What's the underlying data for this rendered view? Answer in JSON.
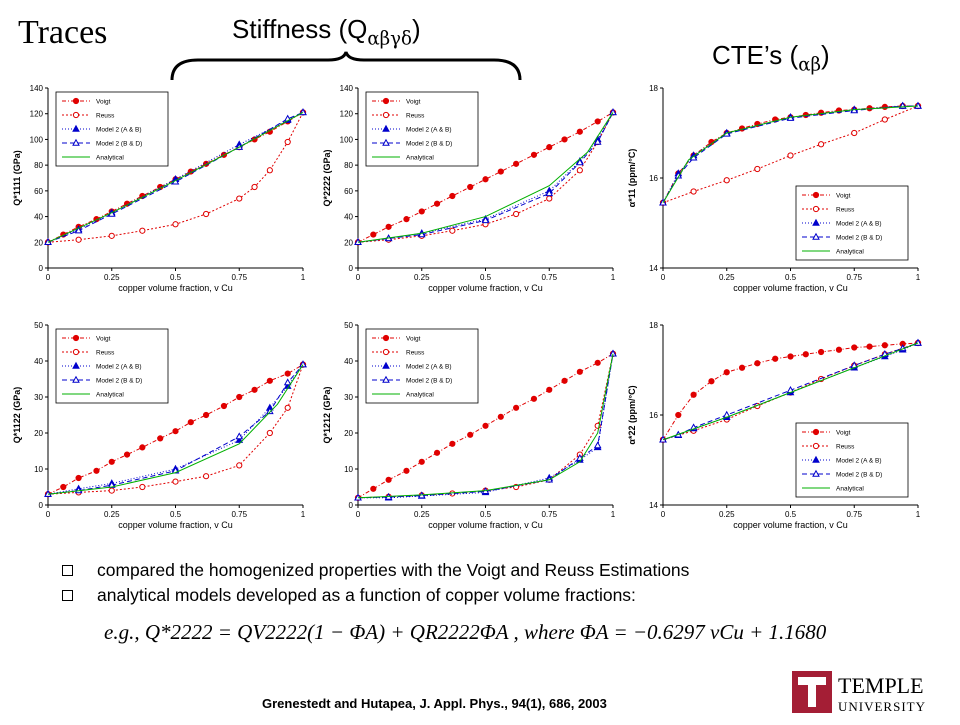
{
  "slide": {
    "title": "Traces",
    "stiffness_heading": "Stiffness (Q",
    "stiffness_greek": "αβγδ",
    "cte_heading": "CTE’s (",
    "cte_greek": "αβ",
    "bullets": [
      "compared the homogenized properties with the Voigt and Reuss Estimations",
      "analytical models developed as a function of copper volume fractions:"
    ],
    "equation_text": "e.g., Q*2222 = QV2222(1 − ΦA) + QR2222ΦA , where ΦA = −0.6297 vCu + 1.1680",
    "citation": "Grenestedt and Hutapea, J. Appl. Phys., 94(1), 686, 2003",
    "logo": {
      "top_word": "TEMPLE",
      "bottom_word": "UNIVERSITY",
      "color": "#a41e35"
    }
  },
  "chart_data": [
    {
      "type": "line",
      "xlabel": "copper volume fraction, v Cu",
      "ylabel": "Q*1111 (GPa)",
      "xlim": [
        0,
        1
      ],
      "ylim": [
        0,
        140
      ],
      "xticks": [
        "0",
        "0.25",
        "0.5",
        "0.75",
        "1"
      ],
      "yticks": [
        "0",
        "20",
        "40",
        "60",
        "80",
        "100",
        "120",
        "140"
      ],
      "legend": [
        "Voigt",
        "Reuss",
        "Model 2 (A & B)",
        "Model 2 (B & D)",
        "Analytical"
      ],
      "legend_position": "top-left",
      "series": [
        {
          "name": "Voigt",
          "x": [
            0,
            0.06,
            0.12,
            0.19,
            0.25,
            0.31,
            0.37,
            0.44,
            0.5,
            0.56,
            0.62,
            0.69,
            0.75,
            0.81,
            0.87,
            0.94,
            1.0
          ],
          "y": [
            20,
            26,
            32,
            38,
            44,
            50,
            56,
            63,
            69,
            75,
            81,
            88,
            94,
            100,
            106,
            114,
            121
          ]
        },
        {
          "name": "Reuss",
          "x": [
            0,
            0.12,
            0.25,
            0.37,
            0.5,
            0.62,
            0.75,
            0.81,
            0.87,
            0.94,
            1.0
          ],
          "y": [
            20,
            22,
            25,
            29,
            34,
            42,
            54,
            63,
            76,
            98,
            121
          ]
        },
        {
          "name": "Model 2 (A & B)",
          "x": [
            0,
            0.12,
            0.25,
            0.5,
            0.75,
            0.94,
            1.0
          ],
          "y": [
            20,
            30,
            43,
            69,
            96,
            115,
            121
          ]
        },
        {
          "name": "Model 2 (B & D)",
          "x": [
            0,
            0.12,
            0.25,
            0.5,
            0.75,
            0.94,
            1.0
          ],
          "y": [
            20,
            29,
            42,
            67,
            94,
            116,
            121
          ]
        },
        {
          "name": "Analytical",
          "x": [
            0,
            0.25,
            0.5,
            0.75,
            1.0
          ],
          "y": [
            20,
            43,
            68,
            94,
            121
          ]
        }
      ]
    },
    {
      "type": "line",
      "xlabel": "copper volume fraction, v Cu",
      "ylabel": "Q*2222 (GPa)",
      "xlim": [
        0,
        1
      ],
      "ylim": [
        0,
        140
      ],
      "xticks": [
        "0",
        "0.25",
        "0.5",
        "0.75",
        "1"
      ],
      "yticks": [
        "0",
        "20",
        "40",
        "60",
        "80",
        "100",
        "120",
        "140"
      ],
      "legend": [
        "Voigt",
        "Reuss",
        "Model 2 (A & B)",
        "Model 2 (B & D)",
        "Analytical"
      ],
      "legend_position": "top-left",
      "series": [
        {
          "name": "Voigt",
          "x": [
            0,
            0.06,
            0.12,
            0.19,
            0.25,
            0.31,
            0.37,
            0.44,
            0.5,
            0.56,
            0.62,
            0.69,
            0.75,
            0.81,
            0.87,
            0.94,
            1.0
          ],
          "y": [
            20,
            26,
            32,
            38,
            44,
            50,
            56,
            63,
            69,
            75,
            81,
            88,
            94,
            100,
            106,
            114,
            121
          ]
        },
        {
          "name": "Reuss",
          "x": [
            0,
            0.12,
            0.25,
            0.37,
            0.5,
            0.62,
            0.75,
            0.87,
            0.94,
            1.0
          ],
          "y": [
            20,
            22,
            25,
            29,
            34,
            42,
            54,
            76,
            98,
            121
          ]
        },
        {
          "name": "Model 2 (A & B)",
          "x": [
            0,
            0.12,
            0.25,
            0.5,
            0.75,
            0.87,
            0.94,
            1.0
          ],
          "y": [
            20,
            23,
            27,
            38,
            60,
            83,
            100,
            121
          ]
        },
        {
          "name": "Model 2 (B & D)",
          "x": [
            0,
            0.12,
            0.25,
            0.5,
            0.75,
            0.87,
            0.94,
            1.0
          ],
          "y": [
            20,
            23,
            26,
            37,
            58,
            82,
            98,
            121
          ]
        },
        {
          "name": "Analytical",
          "x": [
            0,
            0.25,
            0.5,
            0.75,
            0.9,
            1.0
          ],
          "y": [
            20,
            27,
            40,
            64,
            90,
            121
          ]
        }
      ]
    },
    {
      "type": "line",
      "xlabel": "copper volume fraction, v Cu",
      "ylabel": "α*11 (ppm/°C)",
      "xlim": [
        0,
        1
      ],
      "ylim": [
        14,
        18
      ],
      "xticks": [
        "0",
        "0.25",
        "0.5",
        "0.75",
        "1"
      ],
      "yticks": [
        "14",
        "16",
        "18"
      ],
      "legend": [
        "Voigt",
        "Reuss",
        "Model 2 (A & B)",
        "Model 2 (B & D)",
        "Analytical"
      ],
      "legend_position": "bottom-right",
      "series": [
        {
          "name": "Voigt",
          "x": [
            0,
            0.06,
            0.12,
            0.19,
            0.25,
            0.31,
            0.37,
            0.44,
            0.5,
            0.56,
            0.62,
            0.69,
            0.75,
            0.81,
            0.87,
            0.94,
            1.0
          ],
          "y": [
            15.45,
            16.1,
            16.5,
            16.8,
            17.0,
            17.1,
            17.2,
            17.3,
            17.35,
            17.4,
            17.45,
            17.5,
            17.52,
            17.55,
            17.58,
            17.6,
            17.6
          ]
        },
        {
          "name": "Reuss",
          "x": [
            0,
            0.12,
            0.25,
            0.37,
            0.5,
            0.62,
            0.75,
            0.87,
            1.0
          ],
          "y": [
            15.45,
            15.7,
            15.95,
            16.2,
            16.5,
            16.75,
            17.0,
            17.3,
            17.6
          ]
        },
        {
          "name": "Model 2 (A & B)",
          "x": [
            0,
            0.06,
            0.12,
            0.25,
            0.5,
            0.75,
            0.94,
            1.0
          ],
          "y": [
            15.45,
            16.1,
            16.5,
            17.0,
            17.35,
            17.52,
            17.6,
            17.6
          ]
        },
        {
          "name": "Model 2 (B & D)",
          "x": [
            0,
            0.06,
            0.12,
            0.25,
            0.5,
            0.75,
            0.94,
            1.0
          ],
          "y": [
            15.45,
            16.05,
            16.45,
            16.98,
            17.33,
            17.5,
            17.6,
            17.6
          ]
        },
        {
          "name": "Analytical",
          "x": [
            0,
            0.1,
            0.25,
            0.5,
            0.75,
            1.0
          ],
          "y": [
            15.45,
            16.4,
            17.0,
            17.35,
            17.52,
            17.6
          ]
        }
      ]
    },
    {
      "type": "line",
      "xlabel": "copper volume fraction, v Cu",
      "ylabel": "Q*1122 (GPa)",
      "xlim": [
        0,
        1
      ],
      "ylim": [
        0,
        50
      ],
      "xticks": [
        "0",
        "0.25",
        "0.5",
        "0.75",
        "1"
      ],
      "yticks": [
        "0",
        "10",
        "20",
        "30",
        "40",
        "50"
      ],
      "legend": [
        "Voigt",
        "Reuss",
        "Model 2 (A & B)",
        "Model 2 (B & D)",
        "Analytical"
      ],
      "legend_position": "top-left",
      "series": [
        {
          "name": "Voigt",
          "x": [
            0,
            0.06,
            0.12,
            0.19,
            0.25,
            0.31,
            0.37,
            0.44,
            0.5,
            0.56,
            0.62,
            0.69,
            0.75,
            0.81,
            0.87,
            0.94,
            1.0
          ],
          "y": [
            3,
            5,
            7.5,
            9.5,
            12,
            14,
            16,
            18.5,
            20.5,
            23,
            25,
            27.5,
            30,
            32,
            34.5,
            36.5,
            39
          ]
        },
        {
          "name": "Reuss",
          "x": [
            0,
            0.12,
            0.25,
            0.37,
            0.5,
            0.62,
            0.75,
            0.87,
            0.94,
            1.0
          ],
          "y": [
            3,
            3.5,
            4,
            5,
            6.5,
            8,
            11,
            20,
            27,
            39
          ]
        },
        {
          "name": "Model 2 (A & B)",
          "x": [
            0,
            0.12,
            0.25,
            0.5,
            0.75,
            0.87,
            0.94,
            1.0
          ],
          "y": [
            3,
            4.5,
            6,
            10,
            18,
            27,
            33,
            39
          ]
        },
        {
          "name": "Model 2 (B & D)",
          "x": [
            0,
            0.12,
            0.25,
            0.5,
            0.75,
            0.87,
            0.94,
            1.0
          ],
          "y": [
            3,
            4,
            5.5,
            9.5,
            19,
            26,
            34,
            39
          ]
        },
        {
          "name": "Analytical",
          "x": [
            0,
            0.25,
            0.5,
            0.75,
            0.9,
            1.0
          ],
          "y": [
            3,
            5,
            9,
            17,
            28,
            39
          ]
        }
      ]
    },
    {
      "type": "line",
      "xlabel": "copper volume fraction, v Cu",
      "ylabel": "Q*1212 (GPa)",
      "xlim": [
        0,
        1
      ],
      "ylim": [
        0,
        50
      ],
      "xticks": [
        "0",
        "0.25",
        "0.5",
        "0.75",
        "1"
      ],
      "yticks": [
        "0",
        "10",
        "20",
        "30",
        "40",
        "50"
      ],
      "legend": [
        "Voigt",
        "Reuss",
        "Model 2 (A & B)",
        "Model 2 (B & D)",
        "Analytical"
      ],
      "legend_position": "top-left",
      "series": [
        {
          "name": "Voigt",
          "x": [
            0,
            0.06,
            0.12,
            0.19,
            0.25,
            0.31,
            0.37,
            0.44,
            0.5,
            0.56,
            0.62,
            0.69,
            0.75,
            0.81,
            0.87,
            0.94,
            1.0
          ],
          "y": [
            2,
            4.5,
            7,
            9.5,
            12,
            14.5,
            17,
            19.5,
            22,
            24.5,
            27,
            29.5,
            32,
            34.5,
            37,
            39.5,
            42
          ]
        },
        {
          "name": "Reuss",
          "x": [
            0,
            0.12,
            0.25,
            0.37,
            0.5,
            0.62,
            0.75,
            0.87,
            0.94,
            1.0
          ],
          "y": [
            2,
            2.3,
            2.7,
            3.2,
            4,
            5,
            7,
            14,
            22,
            42
          ]
        },
        {
          "name": "Model 2 (A & B)",
          "x": [
            0,
            0.12,
            0.25,
            0.5,
            0.75,
            0.87,
            0.94,
            1.0
          ],
          "y": [
            2,
            2,
            2.5,
            3.5,
            7.5,
            12.5,
            16,
            42
          ]
        },
        {
          "name": "Model 2 (B & D)",
          "x": [
            0,
            0.12,
            0.25,
            0.5,
            0.75,
            0.87,
            0.94,
            1.0
          ],
          "y": [
            2,
            2.2,
            2.6,
            3.8,
            7,
            13,
            16.5,
            42
          ]
        },
        {
          "name": "Analytical",
          "x": [
            0,
            0.25,
            0.5,
            0.75,
            0.87,
            0.94,
            1.0
          ],
          "y": [
            2,
            2.8,
            4,
            7,
            12,
            20,
            42
          ]
        }
      ]
    },
    {
      "type": "line",
      "xlabel": "copper volume fraction, v Cu",
      "ylabel": "α*22 (ppm/°C)",
      "xlim": [
        0,
        1
      ],
      "ylim": [
        14,
        18
      ],
      "xticks": [
        "0",
        "0.25",
        "0.5",
        "0.75",
        "1"
      ],
      "yticks": [
        "14",
        "16",
        "18"
      ],
      "legend": [
        "Voigt",
        "Reuss",
        "Model 2 (A & B)",
        "Model 2 (B & D)",
        "Analytical"
      ],
      "legend_position": "bottom-right",
      "series": [
        {
          "name": "Voigt",
          "x": [
            0,
            0.06,
            0.12,
            0.19,
            0.25,
            0.31,
            0.37,
            0.44,
            0.5,
            0.56,
            0.62,
            0.69,
            0.75,
            0.81,
            0.87,
            0.94,
            1.0
          ],
          "y": [
            15.45,
            16.0,
            16.45,
            16.75,
            16.95,
            17.05,
            17.15,
            17.25,
            17.3,
            17.35,
            17.4,
            17.45,
            17.5,
            17.52,
            17.55,
            17.58,
            17.6
          ]
        },
        {
          "name": "Reuss",
          "x": [
            0,
            0.12,
            0.25,
            0.37,
            0.5,
            0.62,
            0.75,
            0.87,
            1.0
          ],
          "y": [
            15.45,
            15.65,
            15.9,
            16.2,
            16.5,
            16.8,
            17.1,
            17.35,
            17.6
          ]
        },
        {
          "name": "Model 2 (A & B)",
          "x": [
            0,
            0.06,
            0.12,
            0.25,
            0.5,
            0.75,
            0.87,
            0.94,
            1.0
          ],
          "y": [
            15.45,
            15.55,
            15.7,
            15.95,
            16.5,
            17.05,
            17.3,
            17.45,
            17.6
          ]
        },
        {
          "name": "Model 2 (B & D)",
          "x": [
            0,
            0.06,
            0.12,
            0.25,
            0.5,
            0.75,
            0.87,
            0.94,
            1.0
          ],
          "y": [
            15.45,
            15.56,
            15.72,
            16.0,
            16.55,
            17.1,
            17.35,
            17.48,
            17.6
          ]
        },
        {
          "name": "Analytical",
          "x": [
            0,
            0.25,
            0.5,
            0.75,
            1.0
          ],
          "y": [
            15.45,
            15.95,
            16.5,
            17.05,
            17.6
          ]
        }
      ]
    }
  ]
}
